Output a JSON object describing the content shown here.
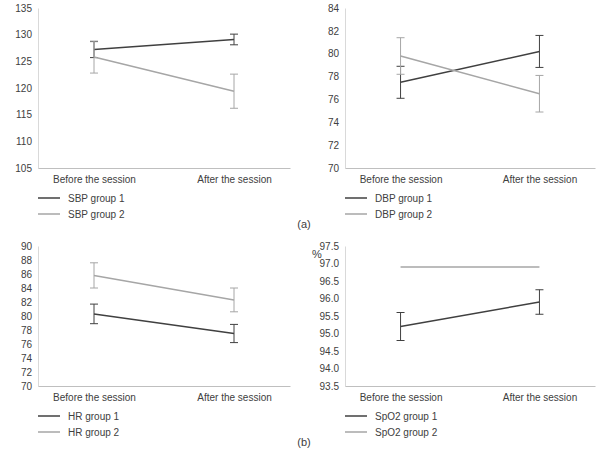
{
  "chart_data": [
    {
      "type": "line",
      "categories": [
        "Before the session",
        "After the session"
      ],
      "ylim": [
        105,
        135
      ],
      "yticks": [
        105,
        110,
        115,
        120,
        125,
        130,
        135
      ],
      "grid": false,
      "legend": "bottom",
      "annotations": [
        "(a)"
      ],
      "series": [
        {
          "name": "SBP group 1",
          "color": "#404040",
          "values": [
            127.2,
            129.1
          ],
          "errors": [
            1.5,
            1.0
          ]
        },
        {
          "name": "SBP group 2",
          "color": "#a6a6a6",
          "values": [
            125.8,
            119.4
          ],
          "errors": [
            3.0,
            3.2
          ]
        }
      ]
    },
    {
      "type": "line",
      "categories": [
        "Before the session",
        "After the session"
      ],
      "ylim": [
        70,
        84
      ],
      "yticks": [
        70,
        72,
        74,
        76,
        78,
        80,
        82,
        84
      ],
      "grid": false,
      "legend": "bottom",
      "series": [
        {
          "name": "DBP group 1",
          "color": "#404040",
          "values": [
            77.5,
            80.2
          ],
          "errors": [
            1.4,
            1.4
          ]
        },
        {
          "name": "DBP group 2",
          "color": "#a6a6a6",
          "values": [
            79.8,
            76.5
          ],
          "errors": [
            1.6,
            1.6
          ]
        }
      ]
    },
    {
      "type": "line",
      "categories": [
        "Before the session",
        "After the session"
      ],
      "ylim": [
        70,
        90
      ],
      "yticks": [
        70,
        72,
        74,
        76,
        78,
        80,
        82,
        84,
        86,
        88,
        90
      ],
      "grid": false,
      "legend": "bottom",
      "annotations": [
        "(b)"
      ],
      "series": [
        {
          "name": "HR group 1",
          "color": "#404040",
          "values": [
            80.3,
            77.5
          ],
          "errors": [
            1.4,
            1.3
          ]
        },
        {
          "name": "HR group 2",
          "color": "#a6a6a6",
          "values": [
            85.8,
            82.3
          ],
          "errors": [
            1.8,
            1.7
          ]
        }
      ]
    },
    {
      "type": "line",
      "categories": [
        "Before the session",
        "After the session"
      ],
      "y_label": "%",
      "ylim": [
        93.5,
        97.5
      ],
      "yticks": [
        93.5,
        {
          "value": 94,
          "label": "94.0"
        },
        94.5,
        {
          "value": 95,
          "label": "95.0"
        },
        95.5,
        {
          "value": 96,
          "label": "96.0"
        },
        96.5,
        {
          "value": 97,
          "label": "97.0"
        },
        97.5
      ],
      "grid": false,
      "legend": "bottom",
      "series": [
        {
          "name": "SpO2 group 1",
          "color": "#404040",
          "values": [
            95.2,
            95.9
          ],
          "errors": [
            0.4,
            0.35
          ]
        },
        {
          "name": "SpO2 group 2",
          "color": "#a6a6a6",
          "values": [
            96.9,
            96.9
          ]
        }
      ]
    }
  ]
}
